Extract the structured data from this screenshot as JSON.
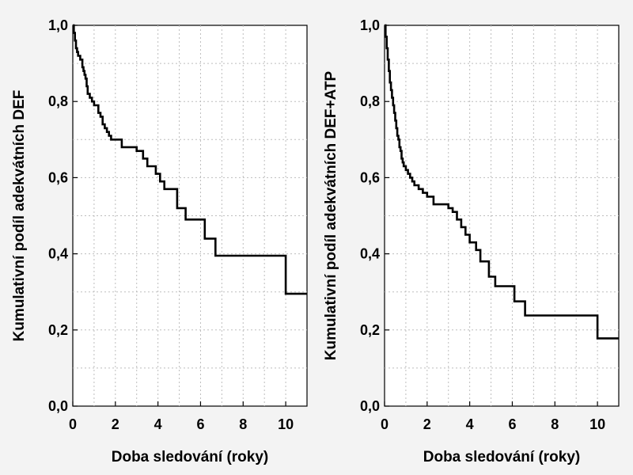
{
  "chart_data": [
    {
      "type": "line",
      "step": true,
      "xlabel": "Doba sledování (roky)",
      "ylabel": "Kumulativní podíl adekvátních DEF",
      "xlim": [
        0,
        11
      ],
      "ylim": [
        0,
        1
      ],
      "xticks": [
        0,
        2,
        4,
        6,
        8,
        10
      ],
      "yticks": [
        0,
        0.2,
        0.4,
        0.6,
        0.8,
        1.0
      ],
      "xtick_labels": [
        "0",
        "2",
        "4",
        "6",
        "8",
        "10"
      ],
      "ytick_labels": [
        "0,0",
        "0,2",
        "0,4",
        "0,6",
        "0,8",
        "1,0"
      ],
      "grid": true,
      "series": [
        {
          "x": [
            0,
            0.05,
            0.1,
            0.15,
            0.2,
            0.25,
            0.35,
            0.45,
            0.5,
            0.55,
            0.6,
            0.65,
            0.7,
            0.8,
            0.9,
            1.0,
            1.2,
            1.3,
            1.4,
            1.5,
            1.6,
            1.7,
            1.8,
            2.3,
            2.5,
            3.0,
            3.3,
            3.5,
            3.9,
            4.1,
            4.3,
            4.6,
            4.9,
            5.1,
            5.3,
            6.2,
            6.7,
            10.0,
            11.0
          ],
          "y": [
            1.0,
            0.98,
            0.96,
            0.94,
            0.93,
            0.92,
            0.91,
            0.89,
            0.88,
            0.87,
            0.86,
            0.84,
            0.82,
            0.81,
            0.8,
            0.79,
            0.77,
            0.76,
            0.74,
            0.73,
            0.72,
            0.71,
            0.7,
            0.68,
            0.68,
            0.67,
            0.65,
            0.63,
            0.61,
            0.59,
            0.57,
            0.57,
            0.52,
            0.52,
            0.49,
            0.44,
            0.395,
            0.295,
            0.295
          ]
        }
      ]
    },
    {
      "type": "line",
      "step": true,
      "xlabel": "Doba sledování (roky)",
      "ylabel": "Kumulativní podíl adekvátních DEF+ATP",
      "xlim": [
        0,
        11
      ],
      "ylim": [
        0,
        1
      ],
      "xticks": [
        0,
        2,
        4,
        6,
        8,
        10
      ],
      "yticks": [
        0,
        0.2,
        0.4,
        0.6,
        0.8,
        1.0
      ],
      "xtick_labels": [
        "0",
        "2",
        "4",
        "6",
        "8",
        "10"
      ],
      "ytick_labels": [
        "0,0",
        "0,2",
        "0,4",
        "0,6",
        "0,8",
        "1,0"
      ],
      "grid": true,
      "series": [
        {
          "x": [
            0,
            0.05,
            0.1,
            0.15,
            0.2,
            0.25,
            0.3,
            0.35,
            0.4,
            0.45,
            0.5,
            0.55,
            0.6,
            0.65,
            0.7,
            0.75,
            0.8,
            0.85,
            0.9,
            1.0,
            1.1,
            1.2,
            1.3,
            1.4,
            1.6,
            1.8,
            2.0,
            2.3,
            2.6,
            3.0,
            3.2,
            3.4,
            3.6,
            3.8,
            4.0,
            4.3,
            4.5,
            4.9,
            5.2,
            6.1,
            6.6,
            10.0,
            11.0
          ],
          "y": [
            1.0,
            0.97,
            0.94,
            0.91,
            0.88,
            0.85,
            0.83,
            0.81,
            0.79,
            0.77,
            0.75,
            0.73,
            0.71,
            0.7,
            0.68,
            0.67,
            0.65,
            0.64,
            0.63,
            0.62,
            0.61,
            0.6,
            0.59,
            0.58,
            0.57,
            0.56,
            0.55,
            0.53,
            0.53,
            0.52,
            0.51,
            0.49,
            0.47,
            0.45,
            0.43,
            0.41,
            0.38,
            0.34,
            0.315,
            0.275,
            0.238,
            0.178,
            0.178
          ]
        }
      ]
    }
  ]
}
